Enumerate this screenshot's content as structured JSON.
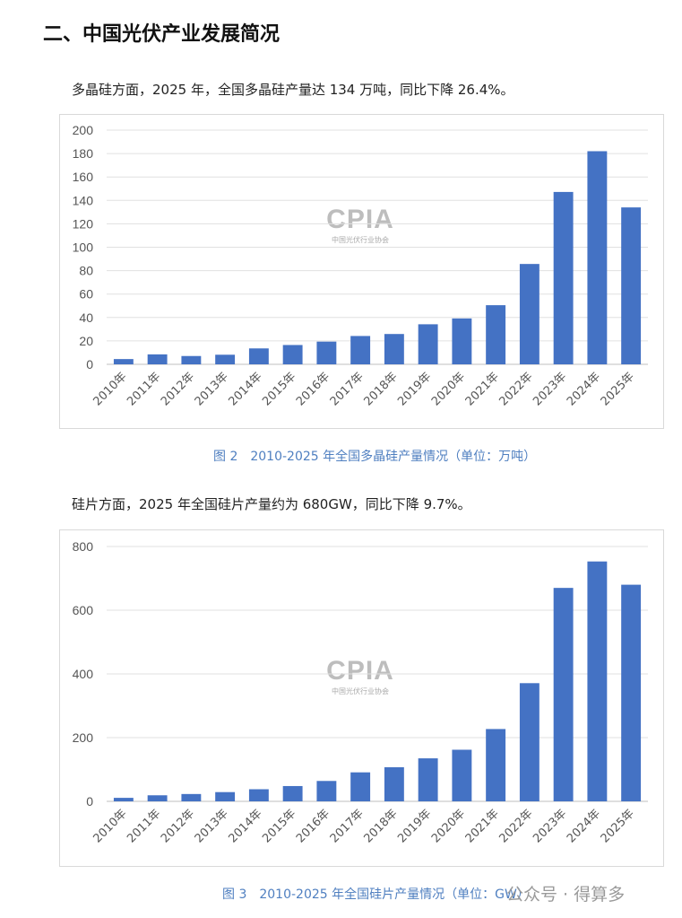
{
  "heading": "二、中国光伏产业发展简况",
  "paragraphs": [
    "多晶硅方面，2025 年，全国多晶硅产量达 134 万吨，同比下降 26.4%。",
    "硅片方面，2025 年全国硅片产量约为 680GW，同比下降 9.7%。"
  ],
  "watermark": {
    "logo": "CPIA",
    "org": "中国光伏行业协会"
  },
  "footer": "公众号 · 得算多",
  "chart_data": [
    {
      "type": "bar",
      "title": "图 2　2010-2025 年全国多晶硅产量情况（单位：万吨）",
      "categories": [
        "2010年",
        "2011年",
        "2012年",
        "2013年",
        "2014年",
        "2015年",
        "2016年",
        "2017年",
        "2018年",
        "2019年",
        "2020年",
        "2021年",
        "2022年",
        "2023年",
        "2024年",
        "2025年"
      ],
      "values": [
        4.5,
        8.5,
        7.1,
        8.2,
        13.6,
        16.5,
        19.4,
        24.2,
        25.9,
        34.2,
        39.2,
        50.5,
        85.7,
        147.2,
        182,
        134
      ],
      "yticks": [
        0,
        20,
        40,
        60,
        80,
        100,
        120,
        140,
        160,
        180,
        200
      ],
      "ylim": [
        0,
        200
      ],
      "grid": true,
      "color": "#4472c4"
    },
    {
      "type": "bar",
      "title": "图 3　2010-2025 年全国硅片产量情况（单位：GW）",
      "categories": [
        "2010年",
        "2011年",
        "2012年",
        "2013年",
        "2014年",
        "2015年",
        "2016年",
        "2017年",
        "2018年",
        "2019年",
        "2020年",
        "2021年",
        "2022年",
        "2023年",
        "2024年",
        "2025年"
      ],
      "values": [
        11,
        19,
        23,
        29,
        38,
        48,
        64,
        91,
        107,
        135,
        162,
        227,
        371,
        670,
        753,
        680
      ],
      "yticks": [
        0,
        200,
        400,
        600,
        800
      ],
      "ylim": [
        0,
        800
      ],
      "grid": true,
      "color": "#4472c4"
    }
  ]
}
